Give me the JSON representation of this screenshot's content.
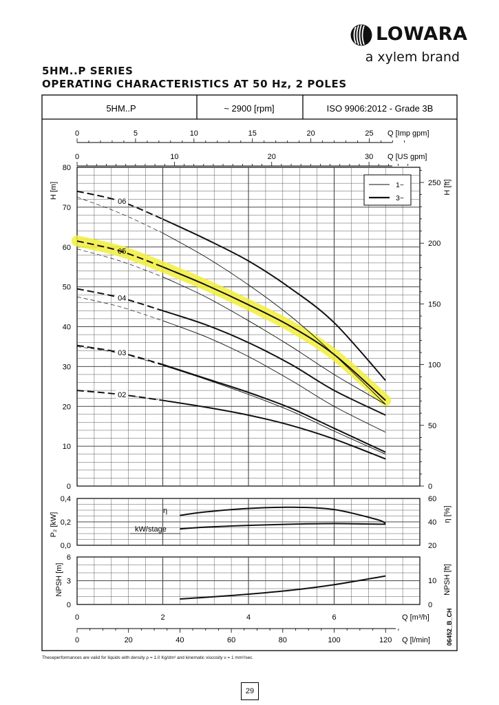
{
  "brand": {
    "name": "LOWARA",
    "tagline": "a xylem brand"
  },
  "title_line1": "5HM..P SERIES",
  "title_line2": "OPERATING CHARACTERISTICS AT 50 Hz, 2 POLES",
  "header": {
    "model": "5HM..P",
    "speed": "~ 2900 [rpm]",
    "standard": "ISO 9906:2012 - Grade 3B"
  },
  "footnote": "Theseperformances are valid for liquids with  density ρ =  1.0 Kg/dm³  and kinematic viscosity ν =  1 mm²/sec.",
  "page_number": "29",
  "doc_code": "06452_B_CH",
  "colors": {
    "grid": "#444444",
    "curve": "#111111",
    "highlight": "#f2ee3c"
  },
  "chart_data": {
    "type": "line",
    "x_unit": "Q [m³/h]",
    "xlim": [
      0,
      8
    ],
    "top_axes": [
      {
        "label": "Q [Imp gpm]",
        "ticks": [
          "0",
          "5",
          "10",
          "15",
          "20",
          "25"
        ]
      },
      {
        "label": "Q [US gpm]",
        "ticks": [
          "0",
          "10",
          "20",
          "30"
        ]
      }
    ],
    "bottom_axes": [
      {
        "label": "Q [m³/h]",
        "ticks": [
          "0",
          "2",
          "4",
          "6"
        ]
      },
      {
        "label": "Q [l/min]",
        "ticks": [
          "0",
          "20",
          "40",
          "60",
          "80",
          "100",
          "120"
        ]
      }
    ],
    "head_panel": {
      "ylabel_left": "H [m]",
      "ylim": [
        0,
        80
      ],
      "yticks": [
        "0",
        "10",
        "20",
        "30",
        "40",
        "50",
        "60",
        "70",
        "80"
      ],
      "ylabel_right": "H [ft]",
      "right_ticks": [
        "0",
        "50",
        "100",
        "150",
        "200",
        "250"
      ],
      "legend": [
        {
          "name": "1~",
          "style": "thin"
        },
        {
          "name": "3~",
          "style": "thick"
        }
      ],
      "highlighted_stage": "05",
      "series": [
        {
          "stage": "02",
          "three_phase": {
            "x": [
              0,
              1,
              2,
              3,
              4,
              5,
              6,
              7.2
            ],
            "y": [
              24,
              23,
              21.5,
              19.8,
              17.8,
              15.2,
              11.8,
              6.8
            ]
          },
          "single_phase": {
            "x": [
              1,
              2,
              3,
              4,
              5,
              6,
              7.2
            ],
            "y": [
              23,
              21.5,
              19.8,
              17.8,
              15.2,
              11.8,
              6.8
            ]
          }
        },
        {
          "stage": "03",
          "three_phase": {
            "x": [
              0,
              1,
              2,
              3,
              4,
              5,
              6,
              7.2
            ],
            "y": [
              35.3,
              33.5,
              30.5,
              27,
              23.5,
              19.5,
              14.5,
              8.5
            ]
          },
          "single_phase": {
            "x": [
              0,
              1,
              2,
              3,
              4,
              5,
              6,
              7.2
            ],
            "y": [
              35,
              33.3,
              30.3,
              26.8,
              23,
              18.8,
              13.8,
              8
            ]
          }
        },
        {
          "stage": "04",
          "three_phase": {
            "x": [
              0,
              1,
              2,
              3,
              4,
              5,
              6,
              7.2
            ],
            "y": [
              49.5,
              47.3,
              44,
              40.5,
              36,
              30.5,
              24,
              17.8
            ]
          },
          "single_phase": {
            "x": [
              0,
              1,
              2,
              3,
              4,
              5,
              6,
              7.2
            ],
            "y": [
              47.5,
              45,
              41.5,
              37.5,
              32.5,
              26.5,
              20,
              13.5
            ]
          }
        },
        {
          "stage": "05",
          "three_phase": {
            "x": [
              0,
              1,
              2,
              3,
              4,
              5,
              6,
              7.2
            ],
            "y": [
              61.5,
              59,
              55,
              50.5,
              45.5,
              40,
              33,
              21.5
            ]
          },
          "single_phase": {
            "x": [
              0,
              1,
              2,
              3,
              4,
              5,
              6,
              7.2
            ],
            "y": [
              59.5,
              56.5,
              52.5,
              47.5,
              41.5,
              35,
              28,
              20.5
            ]
          }
        },
        {
          "stage": "06",
          "three_phase": {
            "x": [
              0,
              1,
              2,
              3,
              4,
              5,
              6,
              7.2
            ],
            "y": [
              74,
              71.5,
              67,
              62,
              56.5,
              49.5,
              41,
              26.5
            ]
          },
          "single_phase": {
            "x": [
              0,
              1,
              2,
              3,
              4,
              5,
              6,
              7.2
            ],
            "y": [
              72.5,
              68.5,
              63.5,
              57.5,
              50.5,
              42.5,
              33,
              20.5
            ]
          }
        }
      ]
    },
    "power_panel": {
      "ylabel_left": "P₂ [kW]",
      "ylim": [
        0,
        0.4
      ],
      "yticks": [
        "0,0",
        "0,2",
        "0,4"
      ],
      "ylabel_right": "η [%]",
      "right_ticks": [
        "20",
        "40",
        "60"
      ],
      "efficiency": {
        "label": "η",
        "x": [
          2.4,
          3,
          4,
          5,
          6,
          7,
          7.2
        ],
        "y_percent": [
          45.5,
          48.5,
          51.5,
          52.5,
          50.5,
          42,
          38.5
        ]
      },
      "power": {
        "label": "kW/stage",
        "x": [
          2.4,
          3,
          4,
          5,
          6,
          7.2
        ],
        "y_kw": [
          0.14,
          0.155,
          0.17,
          0.18,
          0.185,
          0.18
        ]
      }
    },
    "npsh_panel": {
      "ylabel_left": "NPSH [m]",
      "ylim": [
        0,
        6
      ],
      "yticks": [
        "0",
        "3",
        "6"
      ],
      "ylabel_right": "NPSH [ft]",
      "right_ticks": [
        "0",
        "10"
      ],
      "series": {
        "x": [
          2.4,
          3,
          4,
          5,
          6,
          7.2
        ],
        "y": [
          0.7,
          0.9,
          1.3,
          1.8,
          2.5,
          3.6
        ]
      }
    }
  }
}
